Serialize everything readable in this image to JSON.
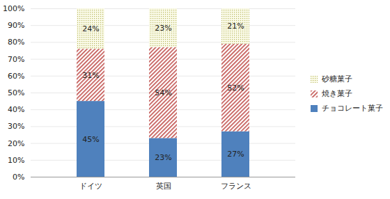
{
  "chart_data": {
    "type": "bar",
    "stacked": true,
    "data_labels": true,
    "grid": true,
    "legend": "right",
    "categories": [
      "ドイツ",
      "英国",
      "フランス"
    ],
    "series": [
      {
        "name": "チョコレート菓子",
        "color": "#4f81bd",
        "values": [
          45,
          23,
          27
        ],
        "value_labels": [
          "45%",
          "23%",
          "27%"
        ]
      },
      {
        "name": "焼き菓子",
        "color": "#c0504d",
        "values": [
          31,
          54,
          52
        ],
        "value_labels": [
          "31%",
          "54%",
          "52%"
        ]
      },
      {
        "name": "砂糖菓子",
        "color": "#b8b860",
        "values": [
          24,
          23,
          21
        ],
        "value_labels": [
          "24%",
          "23%",
          "21%"
        ]
      }
    ],
    "ylim": [
      0,
      100
    ],
    "yticks": [
      {
        "value": 0,
        "label": "0%"
      },
      {
        "value": 10,
        "label": "10%"
      },
      {
        "value": 20,
        "label": "20%"
      },
      {
        "value": 30,
        "label": "30%"
      },
      {
        "value": 40,
        "label": "40%"
      },
      {
        "value": 50,
        "label": "50%"
      },
      {
        "value": 60,
        "label": "60%"
      },
      {
        "value": 70,
        "label": "70%"
      },
      {
        "value": 80,
        "label": "80%"
      },
      {
        "value": 90,
        "label": "90%"
      },
      {
        "value": 100,
        "label": "100%"
      }
    ]
  }
}
